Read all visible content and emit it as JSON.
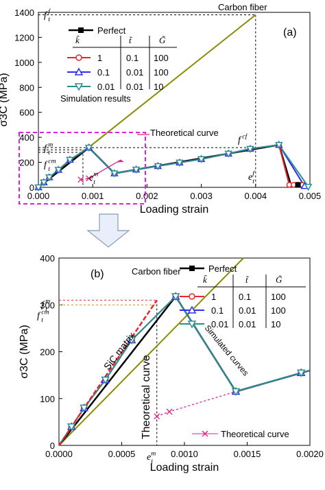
{
  "chart_data": [
    {
      "panel": "(a)",
      "type": "line",
      "xlabel": "Loading strain",
      "ylabel": "σ3C (MPa)",
      "xlim": [
        0,
        0.005
      ],
      "ylim": [
        0,
        1400
      ],
      "x_ticks": [
        "0.000",
        "0.001",
        "0.002",
        "0.003",
        "0.004",
        "0.005"
      ],
      "y_ticks": [
        "0",
        "200",
        "400",
        "600",
        "800",
        "1000",
        "1200",
        "1400"
      ],
      "legend_title": "Perfect",
      "legend_headers": [
        "k̃",
        "t̃",
        "G̃"
      ],
      "legend_rows": [
        {
          "k": "1",
          "t": "0.1",
          "G": "100",
          "color": "#e8262c",
          "marker": "circle"
        },
        {
          "k": "0.1",
          "t": "0.01",
          "G": "100",
          "color": "#2b2ff0",
          "marker": "triangle-up"
        },
        {
          "k": "0.01",
          "t": "0.01",
          "G": "10",
          "color": "#2a8f8f",
          "marker": "triangle-down"
        }
      ],
      "legend_caption": "Simulation results",
      "annotations": {
        "carbon_fiber": "Carbon fiber",
        "theoretical": "Theoretical curve",
        "ff_top": "f",
        "ff_top_sup": "f",
        "ff_top_sub": "t",
        "fcf": "f",
        "fcf_sup": "cf",
        "fm": "f",
        "fm_sup": "m",
        "fm_sub": "t",
        "fcm": "f",
        "fcm_sup": "cm",
        "fcm_sub": "t",
        "em": "e",
        "em_sup": "m",
        "em_sub": "t",
        "ef": "e",
        "ef_sup": "f",
        "ef_sub": "t"
      },
      "series": [
        {
          "name": "Carbon fiber",
          "color": "#8a8a00",
          "x": [
            0,
            0.004
          ],
          "y": [
            0,
            1380
          ]
        },
        {
          "name": "Perfect",
          "color": "#000000",
          "x": [
            0,
            0.00093,
            0.0014,
            0.0035,
            0.00443,
            0.00465,
            0.00478
          ],
          "y": [
            0,
            318,
            112,
            270,
            340,
            20,
            20
          ]
        },
        {
          "name": "1",
          "color": "#e8262c",
          "x": [
            0,
            0.0001,
            0.0002,
            0.00037,
            0.00058,
            0.00093,
            0.0014,
            0.0018,
            0.0022,
            0.0026,
            0.003,
            0.0035,
            0.0039,
            0.00443,
            0.00462,
            0.0047,
            0.00478,
            0.00486
          ],
          "y": [
            0,
            40,
            80,
            140,
            220,
            318,
            112,
            142,
            170,
            198,
            226,
            270,
            308,
            340,
            20,
            20,
            20,
            20
          ]
        },
        {
          "name": "0.1",
          "color": "#2b2ff0",
          "x": [
            0,
            0.0001,
            0.0002,
            0.00037,
            0.00058,
            0.00093,
            0.0014,
            0.0018,
            0.0022,
            0.0026,
            0.003,
            0.0035,
            0.0039,
            0.00443,
            0.0049
          ],
          "y": [
            0,
            40,
            80,
            140,
            220,
            318,
            112,
            142,
            170,
            198,
            226,
            270,
            308,
            340,
            10
          ]
        },
        {
          "name": "0.01",
          "color": "#2a8f8f",
          "x": [
            0,
            0.0001,
            0.0002,
            0.00037,
            0.00058,
            0.00093,
            0.0014,
            0.0018,
            0.0022,
            0.0026,
            0.003,
            0.0035,
            0.0039,
            0.00443,
            0.00497
          ],
          "y": [
            0,
            40,
            80,
            140,
            220,
            318,
            112,
            142,
            170,
            198,
            226,
            270,
            308,
            340,
            5
          ]
        },
        {
          "name": "Theoretical curve",
          "color": "#e0208c",
          "x": [
            0.00078,
            0.00093
          ],
          "y": [
            62,
            72
          ]
        }
      ]
    },
    {
      "panel": "(b)",
      "type": "line",
      "xlabel": "Loading strain",
      "ylabel": "σ3C (MPa)",
      "xlim": [
        0,
        0.002
      ],
      "ylim": [
        0,
        400
      ],
      "x_ticks": [
        "0.0000",
        "0.0005",
        "0.0010",
        "0.0015",
        "0.0020"
      ],
      "y_ticks": [
        "0",
        "100",
        "200",
        "300",
        "400"
      ],
      "legend_title": "Perfect",
      "legend_headers": [
        "k̃",
        "t̃",
        "G̃"
      ],
      "legend_rows": [
        {
          "k": "1",
          "t": "0.1",
          "G": "100",
          "color": "#e8262c",
          "marker": "circle"
        },
        {
          "k": "0.1",
          "t": "0.01",
          "G": "100",
          "color": "#2b2ff0",
          "marker": "triangle-up"
        },
        {
          "k": "0.01",
          "t": "0.01",
          "G": "10",
          "color": "#2a8f8f",
          "marker": "triangle-down"
        }
      ],
      "annotations": {
        "carbon_fiber": "Carbon fiber",
        "sic_matrix": "SiC matrix",
        "theoretical_vertical": "Theoretical curve",
        "simulated": "Simulated curves",
        "theoretical_legend": "Theoretical curve",
        "fm": "f",
        "fm_sup": "m",
        "fm_sub": "t",
        "fcm": "f",
        "fcm_sup": "cm",
        "fcm_sub": "t",
        "em": "e",
        "em_sup": "m",
        "em_sub": "t"
      },
      "series": [
        {
          "name": "Carbon fiber",
          "color": "#8a8a00",
          "x": [
            0,
            0.00147
          ],
          "y": [
            0,
            400
          ]
        },
        {
          "name": "Perfect",
          "color": "#000000",
          "x": [
            0,
            0.00093,
            0.00141,
            0.002
          ],
          "y": [
            0,
            318,
            115,
            160
          ]
        },
        {
          "name": "1",
          "color": "#e8262c",
          "x": [
            0,
            0.0001,
            0.0002,
            0.00037,
            0.00058,
            0.00093,
            0.00141,
            0.00193,
            0.002
          ],
          "y": [
            0,
            40,
            80,
            140,
            225,
            318,
            115,
            155,
            160
          ]
        },
        {
          "name": "0.1",
          "color": "#2b2ff0",
          "x": [
            0,
            0.0001,
            0.0002,
            0.00037,
            0.00058,
            0.00093,
            0.00141,
            0.00193,
            0.002
          ],
          "y": [
            0,
            40,
            80,
            140,
            225,
            318,
            115,
            155,
            160
          ]
        },
        {
          "name": "0.01",
          "color": "#2a8f8f",
          "x": [
            0,
            0.0001,
            0.0002,
            0.00037,
            0.00058,
            0.00093,
            0.00141,
            0.00193,
            0.002
          ],
          "y": [
            0,
            40,
            80,
            140,
            225,
            318,
            115,
            155,
            160
          ]
        },
        {
          "name": "SiC matrix",
          "color": "#e8262c",
          "x": [
            0,
            0.00078
          ],
          "y": [
            0,
            310
          ]
        },
        {
          "name": "Theoretical curve",
          "color": "#e0208c",
          "x": [
            0.00078,
            0.00088,
            0.00141
          ],
          "y": [
            62,
            72,
            115
          ]
        }
      ],
      "ref_lines": {
        "fm_y": 310,
        "fcm_y": 300,
        "em_x": 0.00078
      }
    }
  ]
}
